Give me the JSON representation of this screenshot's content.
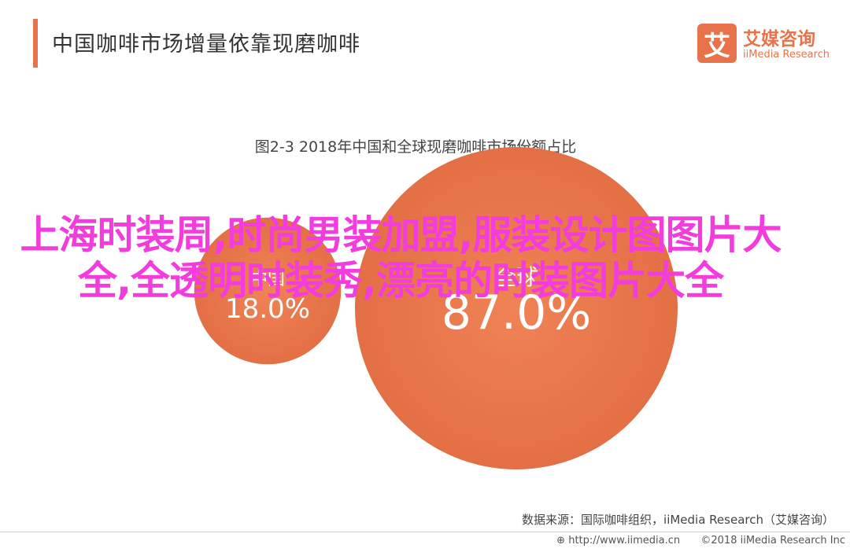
{
  "header": {
    "title": "中国咖啡市场增量依靠现磨咖啡"
  },
  "logo": {
    "mark": "艾",
    "name_cn": "艾媒咨询",
    "name_en": "iiMedia Research"
  },
  "overlay_text": "上海时装周,时尚男装加盟,服装设计图图片大全,全透明时装秀,漂亮的时装图片大全",
  "footer": {
    "source": "数据来源：国际咖啡组织，iiMedia Research（艾媒咨询）",
    "url": "http://www.iimedia.cn",
    "copyright": "©2018  iiMedia Research  Inc"
  },
  "colors": {
    "accent": "#e8734a",
    "overlay": "#f23ddc"
  },
  "chart_data": {
    "type": "bubble",
    "title": "图2-3 2018年中国和全球现磨咖啡市场份额占比",
    "series": [
      {
        "label": "中国",
        "value": 18.0,
        "display": "18.0%"
      },
      {
        "label": "全球",
        "value": 87.0,
        "display": "87.0%"
      }
    ]
  }
}
